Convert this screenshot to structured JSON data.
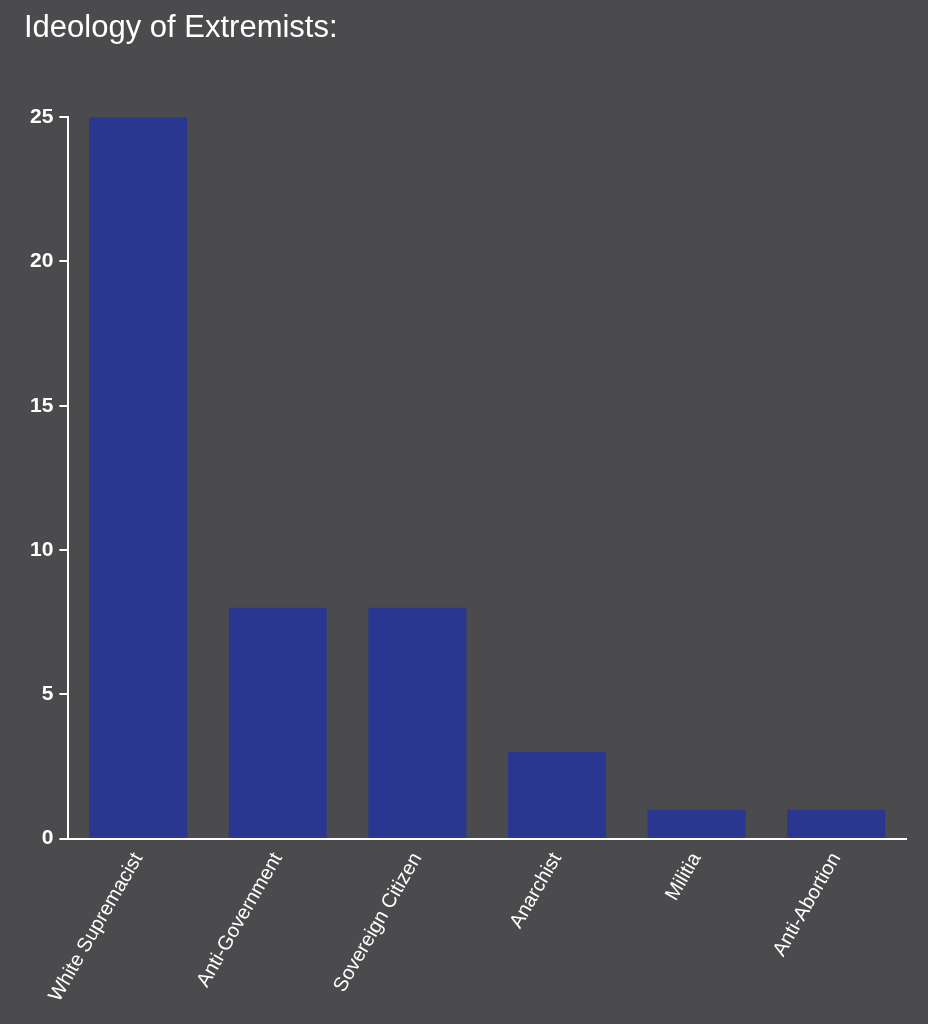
{
  "chart_data": {
    "type": "bar",
    "title": "Ideology of Extremists:",
    "categories": [
      "White Supremacist",
      "Anti-Government",
      "Sovereign Citizen",
      "Anarchist",
      "Militia",
      "Anti-Abortion"
    ],
    "values": [
      25,
      8,
      8,
      3,
      1,
      1
    ],
    "color": "#2a3791",
    "ylim": [
      0,
      25
    ],
    "yticks": [
      0,
      5,
      10,
      15,
      20,
      25
    ],
    "grid": false
  }
}
